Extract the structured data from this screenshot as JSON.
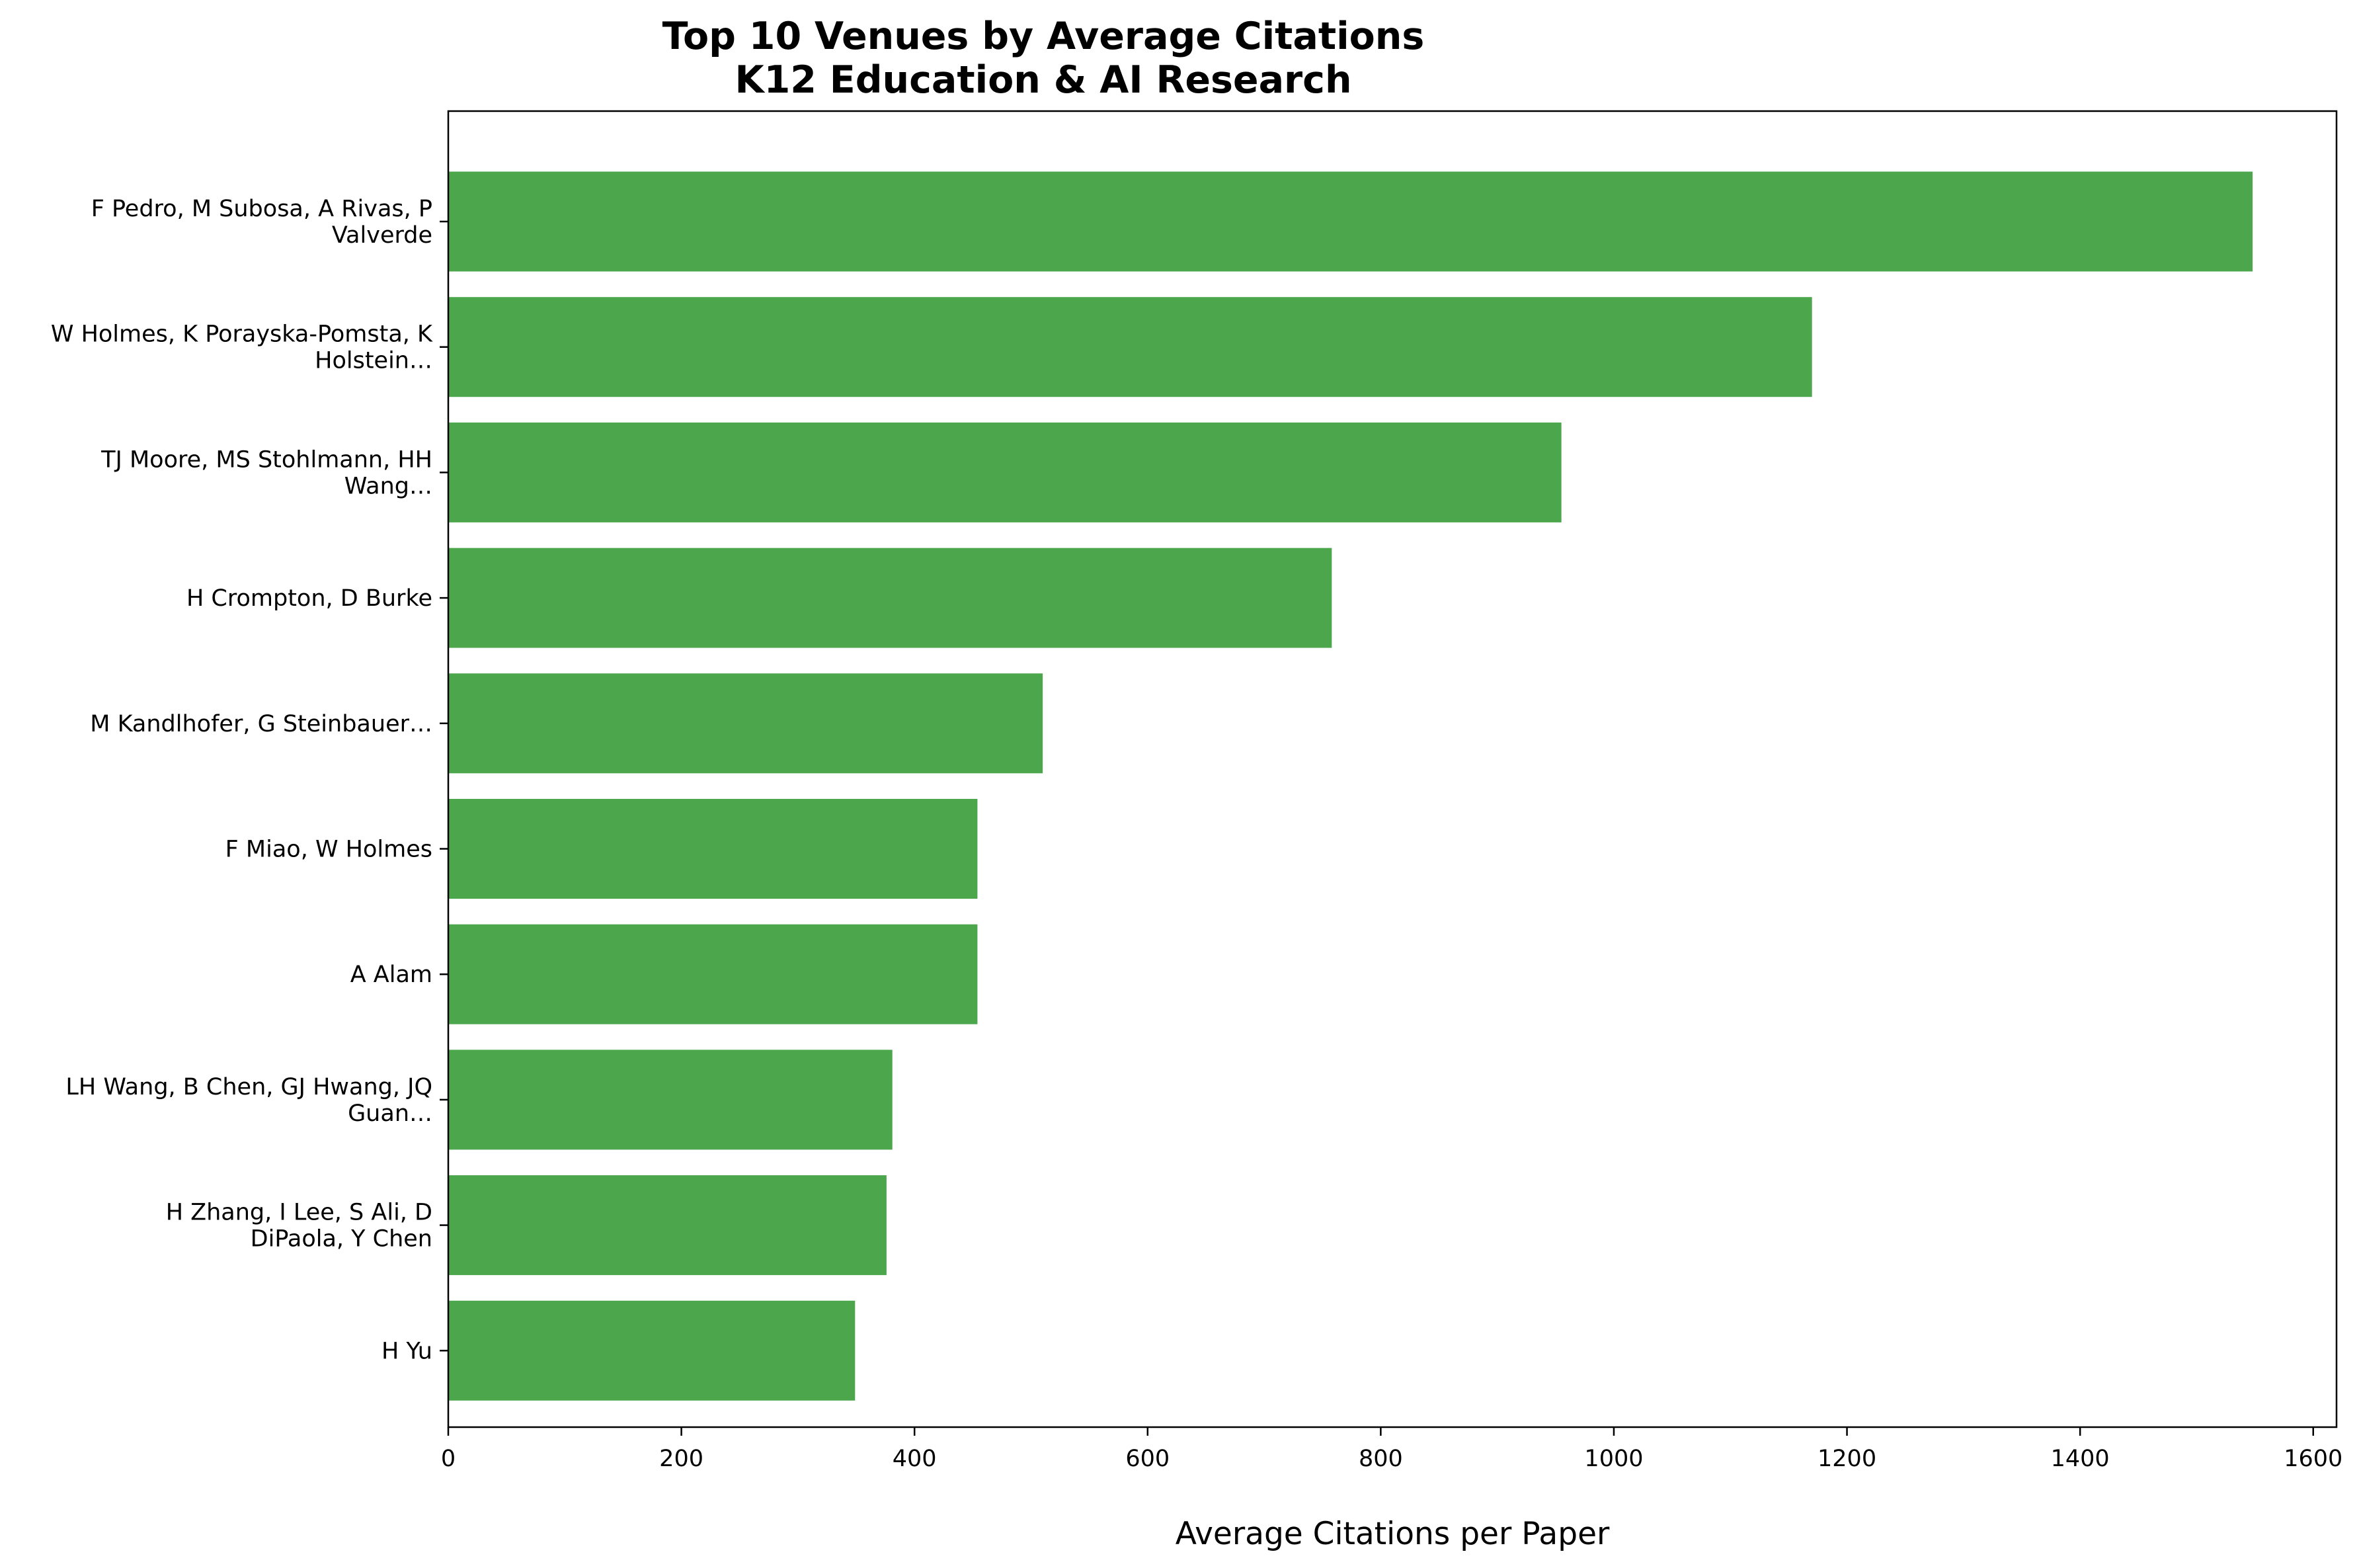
{
  "chart_data": {
    "type": "bar",
    "orientation": "horizontal",
    "title_lines": [
      "Top 10 Venues by Average Citations",
      "K12 Education & AI Research"
    ],
    "xlabel": "Average Citations per Paper",
    "ylabel": "",
    "xlim": [
      0,
      1620
    ],
    "xticks": [
      0,
      200,
      400,
      600,
      800,
      1000,
      1200,
      1400,
      1600
    ],
    "bar_color": "#4ca64c",
    "grid": false,
    "legend": "none",
    "categories": [
      [
        "F Pedro, M Subosa, A Rivas, P",
        "Valverde"
      ],
      [
        "W Holmes, K Porayska-Pomsta, K",
        "Holstein…"
      ],
      [
        "TJ Moore, MS Stohlmann, HH",
        "Wang…"
      ],
      [
        "H Crompton, D Burke"
      ],
      [
        "M Kandlhofer, G Steinbauer…"
      ],
      [
        "F Miao, W Holmes"
      ],
      [
        "A Alam"
      ],
      [
        "LH Wang, B Chen, GJ Hwang, JQ",
        "Guan…"
      ],
      [
        "H Zhang, I Lee, S Ali, D",
        "DiPaola, Y Chen"
      ],
      [
        "H Yu"
      ]
    ],
    "values": [
      1548,
      1170,
      955,
      758,
      510,
      454,
      454,
      381,
      376,
      349
    ]
  }
}
